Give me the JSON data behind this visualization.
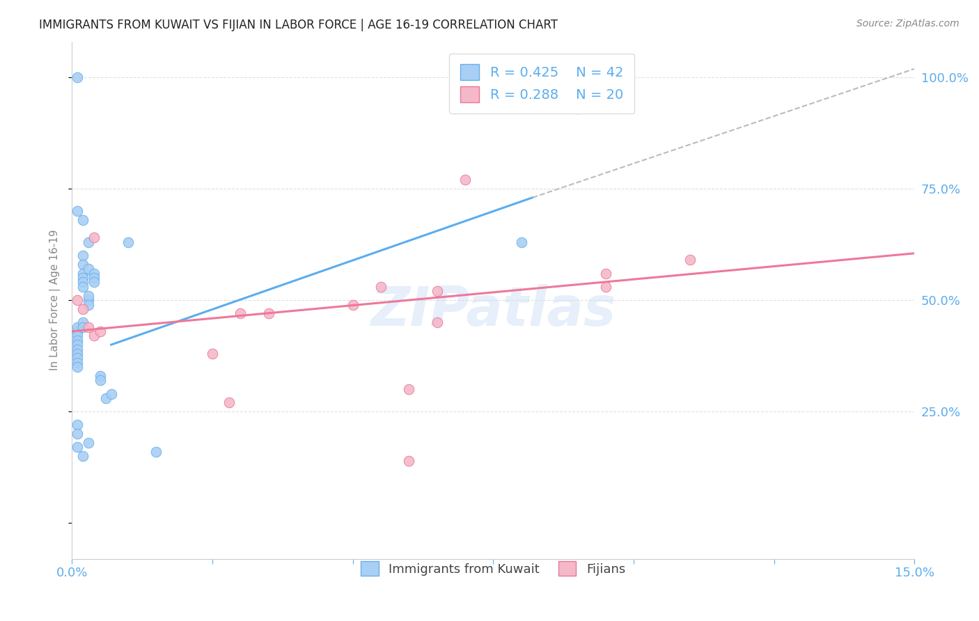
{
  "title": "IMMIGRANTS FROM KUWAIT VS FIJIAN IN LABOR FORCE | AGE 16-19 CORRELATION CHART",
  "source": "Source: ZipAtlas.com",
  "ylabel": "In Labor Force | Age 16-19",
  "xlim": [
    0.0,
    0.15
  ],
  "ylim": [
    -0.08,
    1.08
  ],
  "ytick_labels_right": [
    "100.0%",
    "75.0%",
    "50.0%",
    "25.0%"
  ],
  "ytick_positions_right": [
    1.0,
    0.75,
    0.5,
    0.25
  ],
  "watermark": "ZIPatlas",
  "blue_scatter": {
    "x": [
      0.001,
      0.001,
      0.001,
      0.001,
      0.001,
      0.001,
      0.001,
      0.001,
      0.001,
      0.001,
      0.002,
      0.002,
      0.002,
      0.002,
      0.002,
      0.002,
      0.002,
      0.002,
      0.003,
      0.003,
      0.003,
      0.003,
      0.004,
      0.004,
      0.004,
      0.005,
      0.005,
      0.006,
      0.007,
      0.001,
      0.001,
      0.001,
      0.002,
      0.003,
      0.01,
      0.015,
      0.08,
      0.09,
      0.003,
      0.002,
      0.001,
      0.001
    ],
    "y": [
      0.43,
      0.44,
      0.42,
      0.41,
      0.4,
      0.39,
      0.38,
      0.37,
      0.36,
      0.35,
      0.6,
      0.58,
      0.56,
      0.55,
      0.54,
      0.53,
      0.45,
      0.44,
      0.57,
      0.5,
      0.51,
      0.49,
      0.56,
      0.55,
      0.54,
      0.33,
      0.32,
      0.28,
      0.29,
      0.22,
      0.2,
      0.17,
      0.68,
      0.63,
      0.63,
      0.16,
      0.63,
      0.93,
      0.18,
      0.15,
      0.7,
      1.0
    ]
  },
  "pink_scatter": {
    "x": [
      0.001,
      0.002,
      0.003,
      0.004,
      0.005,
      0.025,
      0.028,
      0.03,
      0.035,
      0.05,
      0.055,
      0.06,
      0.065,
      0.07,
      0.095,
      0.095,
      0.11,
      0.004,
      0.065,
      0.06
    ],
    "y": [
      0.5,
      0.48,
      0.44,
      0.42,
      0.43,
      0.38,
      0.27,
      0.47,
      0.47,
      0.49,
      0.53,
      0.14,
      0.45,
      0.77,
      0.56,
      0.53,
      0.59,
      0.64,
      0.52,
      0.3
    ]
  },
  "blue_line": {
    "x": [
      0.007,
      0.082
    ],
    "y": [
      0.4,
      0.73
    ]
  },
  "blue_dashed_line": {
    "x": [
      0.082,
      0.155
    ],
    "y": [
      0.73,
      1.04
    ]
  },
  "pink_line": {
    "x": [
      0.0,
      0.15
    ],
    "y": [
      0.43,
      0.605
    ]
  },
  "blue_color": "#a8cff5",
  "pink_color": "#f5b8c8",
  "blue_scatter_edge": "#6aaee8",
  "pink_scatter_edge": "#e87898",
  "blue_line_color": "#5badee",
  "pink_line_color": "#ee789a",
  "dashed_color": "#bbbbbb",
  "title_color": "#222222",
  "axis_label_color": "#5badee",
  "grid_color": "#e0e0e0",
  "background_color": "#ffffff"
}
